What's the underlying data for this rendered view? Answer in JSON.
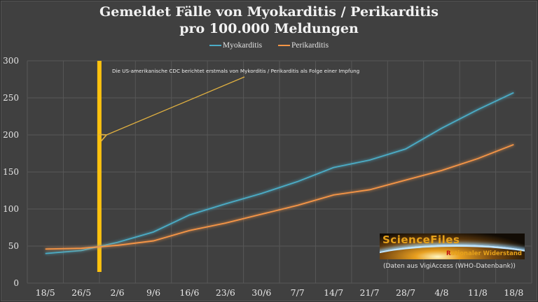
{
  "chart_data": {
    "type": "line",
    "title": [
      "Gemeldet Fälle von Myokarditis / Perikarditis",
      "pro 100.000 Meldungen"
    ],
    "categories": [
      "18/5",
      "26/5",
      "2/6",
      "9/6",
      "16/6",
      "23/6",
      "30/6",
      "7/7",
      "14/7",
      "21/7",
      "28/7",
      "4/8",
      "11/8",
      "18/8"
    ],
    "series": [
      {
        "name": "Myokarditis",
        "color": "#4bacc6",
        "values": [
          40,
          44,
          55,
          69,
          92,
          107,
          121,
          137,
          156,
          166,
          181,
          209,
          234,
          257
        ]
      },
      {
        "name": "Perikarditis",
        "color": "#f79646",
        "values": [
          46,
          47,
          51,
          57,
          71,
          81,
          93,
          105,
          119,
          126,
          139,
          152,
          168,
          187
        ]
      }
    ],
    "ylim": [
      0,
      300
    ],
    "yticks": [
      "0",
      "50",
      "100",
      "150",
      "200",
      "250",
      "300"
    ],
    "grid": true,
    "legend": "top",
    "annotation": {
      "text": "Die US-amerikanische CDC berichtet erstmals von Mykorditis / Perikarditis als Folge einer Impfung",
      "marker_between": [
        "26/5",
        "2/6"
      ],
      "marker_color": "#ffc20e"
    },
    "source": "(Daten aus VigiAccess (WHO-Datenbank))",
    "logo_text": [
      "ScienceFiles",
      "Rationaler Widerstand"
    ]
  }
}
